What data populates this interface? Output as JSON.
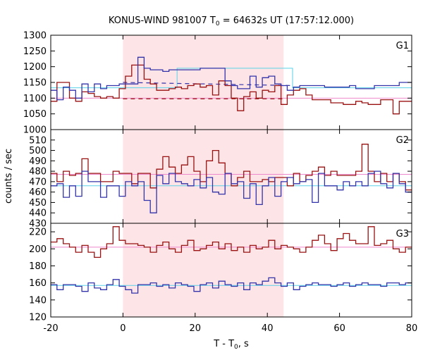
{
  "chart_data": {
    "type": "line",
    "title_main": "KONUS-WIND 981007 T",
    "title_sub": "0",
    "title_rest": " = 64632s UT (17:57:12.000)",
    "xlabel_main": "T - T",
    "xlabel_sub": "0",
    "xlabel_rest": ", s",
    "ylabel": "counts / sec",
    "xlim": [
      -20,
      80
    ],
    "xticks": [
      -20,
      0,
      20,
      40,
      60,
      80
    ],
    "interval": [
      0,
      44.5
    ],
    "colors": {
      "blue": "#3333aa",
      "red": "#991111",
      "cyan": "#5ad2e8",
      "pink": "#ee88cc",
      "interval": "#fde4e6"
    },
    "panels": [
      {
        "label": "G1",
        "ylim": [
          1000,
          1300
        ],
        "yticks": [
          1000,
          1050,
          1100,
          1150,
          1200,
          1250,
          1300
        ],
        "blue_bg_level": 1133,
        "red_bg_level": 1100,
        "cyan_fit": [
          [
            -20,
            1133
          ],
          [
            15,
            1133
          ],
          [
            15,
            1195
          ],
          [
            47,
            1195
          ],
          [
            47,
            1133
          ],
          [
            80,
            1133
          ]
        ],
        "blue_dashed": [
          [
            0,
            1150
          ],
          [
            47,
            1140
          ]
        ],
        "red_dashed": [
          [
            0,
            1098
          ],
          [
            44.5,
            1098
          ]
        ],
        "blue_steps": [
          1125,
          1095,
          1135,
          1125,
          1100,
          1145,
          1120,
          1145,
          1130,
          1140,
          1140,
          1145,
          1145,
          1145,
          1230,
          1195,
          1190,
          1190,
          1185,
          1190,
          1190,
          1190,
          1190,
          1190,
          1195,
          1195,
          1195,
          1195,
          1155,
          1140,
          1130,
          1130,
          1170,
          1135,
          1165,
          1170,
          1145,
          1140,
          1125,
          1135,
          1140,
          1140,
          1140,
          1140,
          1135,
          1135,
          1135,
          1135,
          1140,
          1130,
          1130,
          1130,
          1140,
          1140,
          1140,
          1140,
          1150,
          1150
        ],
        "red_steps": [
          1090,
          1150,
          1150,
          1100,
          1090,
          1120,
          1115,
          1105,
          1100,
          1105,
          1100,
          1130,
          1170,
          1205,
          1205,
          1160,
          1145,
          1125,
          1125,
          1130,
          1135,
          1130,
          1140,
          1145,
          1135,
          1140,
          1110,
          1155,
          1140,
          1100,
          1060,
          1105,
          1120,
          1100,
          1125,
          1120,
          1140,
          1080,
          1110,
          1125,
          1130,
          1110,
          1095,
          1095,
          1095,
          1085,
          1085,
          1080,
          1080,
          1090,
          1085,
          1080,
          1080,
          1095,
          1095,
          1050,
          1090,
          1090
        ]
      },
      {
        "label": "G2",
        "ylim": [
          430,
          520
        ],
        "yticks": [
          430,
          440,
          450,
          460,
          470,
          480,
          490,
          500,
          510
        ],
        "blue_bg_level": 466,
        "red_bg_level": 477,
        "blue_steps": [
          466,
          468,
          455,
          466,
          456,
          480,
          470,
          470,
          455,
          466,
          466,
          456,
          470,
          466,
          470,
          452,
          440,
          476,
          468,
          478,
          470,
          468,
          466,
          472,
          464,
          474,
          460,
          458,
          478,
          468,
          470,
          454,
          468,
          448,
          466,
          474,
          456,
          470,
          474,
          468,
          470,
          472,
          450,
          478,
          466,
          466,
          462,
          470,
          466,
          470,
          466,
          478,
          480,
          468,
          464,
          478,
          468,
          460
        ],
        "red_steps": [
          478,
          470,
          480,
          476,
          478,
          492,
          478,
          478,
          470,
          470,
          480,
          478,
          478,
          468,
          478,
          478,
          464,
          482,
          494,
          484,
          478,
          486,
          494,
          480,
          470,
          490,
          500,
          488,
          478,
          466,
          474,
          480,
          470,
          470,
          472,
          470,
          474,
          474,
          466,
          478,
          470,
          476,
          480,
          484,
          476,
          480,
          476,
          476,
          476,
          480,
          506,
          480,
          470,
          478,
          470,
          478,
          470,
          462
        ]
      },
      {
        "label": "G3",
        "ylim": [
          120,
          230
        ],
        "yticks": [
          120,
          140,
          160,
          180,
          200,
          220
        ],
        "blue_bg_level": 157,
        "red_bg_level": 202,
        "blue_steps": [
          158,
          152,
          158,
          158,
          156,
          150,
          160,
          154,
          152,
          158,
          164,
          156,
          152,
          148,
          158,
          158,
          160,
          156,
          158,
          154,
          160,
          158,
          156,
          150,
          158,
          160,
          154,
          162,
          158,
          156,
          160,
          152,
          160,
          158,
          162,
          166,
          160,
          156,
          160,
          152,
          156,
          158,
          160,
          158,
          158,
          156,
          158,
          160,
          156,
          158,
          160,
          158,
          158,
          156,
          160,
          160,
          158,
          160
        ],
        "red_steps": [
          208,
          212,
          206,
          202,
          196,
          204,
          196,
          190,
          200,
          206,
          226,
          210,
          206,
          206,
          204,
          202,
          196,
          204,
          208,
          200,
          196,
          204,
          210,
          198,
          200,
          204,
          208,
          200,
          206,
          198,
          202,
          196,
          204,
          200,
          202,
          210,
          200,
          204,
          202,
          200,
          196,
          202,
          210,
          216,
          206,
          198,
          212,
          218,
          210,
          206,
          206,
          226,
          204,
          206,
          210,
          200,
          196,
          202
        ]
      }
    ]
  }
}
